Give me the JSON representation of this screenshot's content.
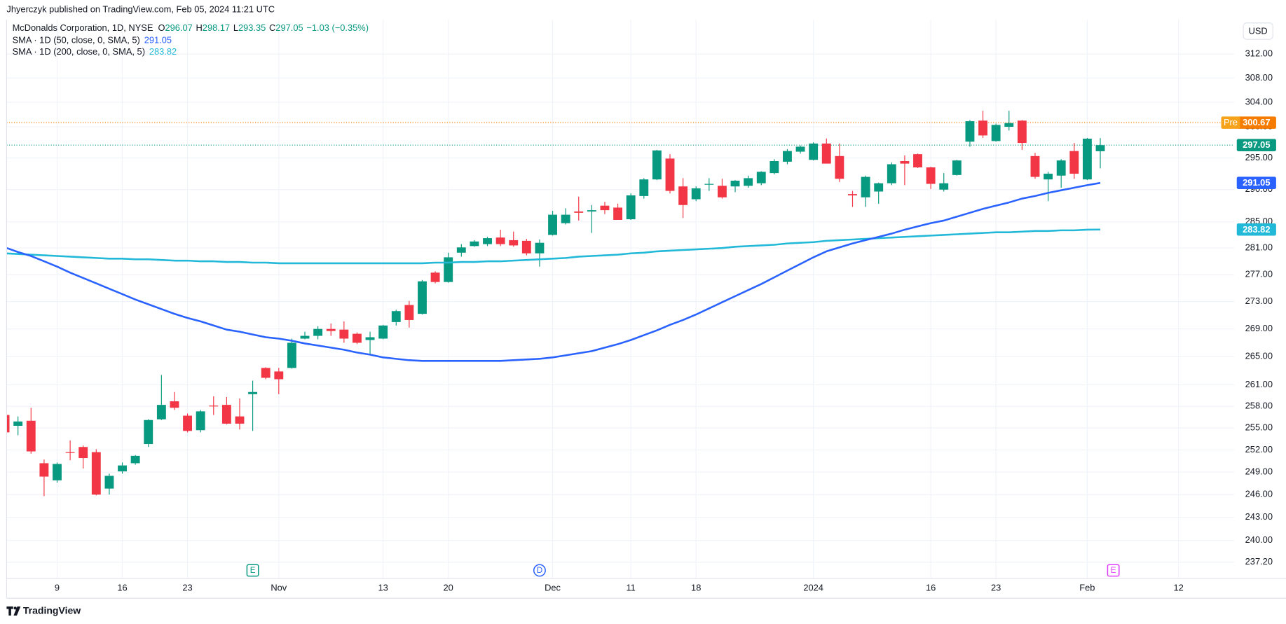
{
  "header": {
    "published": "Jhyerczyk published on TradingView.com, Feb 05, 2024 11:21 UTC"
  },
  "chart_data": {
    "type": "candlestick",
    "title": "McDonalds Corporation, 1D, NYSE",
    "ohlc_letters": [
      "O",
      "H",
      "L",
      "C"
    ],
    "change_label": "−1.03 (−0.35%)",
    "currency": "USD",
    "categories": [
      null,
      null,
      null,
      null,
      "9",
      null,
      null,
      null,
      null,
      "16",
      null,
      null,
      null,
      null,
      "23",
      null,
      null,
      null,
      null,
      null,
      null,
      "Nov",
      null,
      null,
      null,
      null,
      null,
      null,
      null,
      "13",
      null,
      null,
      null,
      null,
      "20",
      null,
      null,
      null,
      null,
      null,
      null,
      null,
      "Dec",
      null,
      null,
      null,
      null,
      null,
      "11",
      null,
      null,
      null,
      null,
      "18",
      null,
      null,
      null,
      null,
      null,
      null,
      null,
      null,
      "2024",
      null,
      null,
      null,
      null,
      null,
      null,
      null,
      null,
      "16",
      null,
      null,
      null,
      null,
      "23",
      null,
      null,
      null,
      null,
      null,
      null,
      "Feb",
      null,
      null,
      null,
      null,
      null,
      null,
      "12"
    ],
    "open": [
      256.8,
      255.3,
      256.0,
      250.2,
      247.9,
      251.7,
      252.4,
      251.7,
      246.8,
      249.1,
      250.2,
      252.8,
      256.2,
      258.7,
      256.7,
      254.7,
      258.1,
      258.2,
      256.6,
      259.7,
      263.4,
      262.9,
      263.4,
      267.6,
      268.0,
      269.0,
      268.9,
      268.3,
      267.4,
      267.6,
      270.0,
      272.5,
      271.2,
      277.3,
      275.9,
      280.3,
      281.3,
      281.6,
      282.6,
      282.2,
      282.1,
      280.2,
      283.0,
      284.8,
      286.6,
      286.6,
      287.5,
      287.2,
      285.4,
      289.0,
      291.6,
      294.9,
      290.5,
      288.5,
      290.8,
      290.6,
      290.5,
      290.6,
      291.0,
      292.6,
      294.4,
      296.0,
      294.7,
      297.3,
      295.3,
      289.3,
      288.8,
      289.7,
      291.0,
      294.5,
      295.6,
      293.5,
      290.0,
      292.3,
      297.6,
      301.0,
      297.7,
      300.0,
      301.0,
      295.3,
      291.6,
      292.2,
      296.1,
      291.6,
      296.07,
      null,
      null,
      null,
      null,
      null,
      null
    ],
    "high": [
      257.5,
      256.6,
      257.8,
      250.7,
      250.3,
      253.3,
      252.6,
      252.1,
      248.8,
      250.3,
      251.3,
      256.2,
      262.4,
      260.0,
      257.0,
      257.5,
      259.4,
      259.3,
      259.1,
      261.6,
      263.5,
      263.4,
      267.6,
      268.6,
      269.4,
      269.8,
      270.1,
      268.5,
      268.6,
      269.6,
      271.8,
      273.1,
      276.2,
      277.5,
      280.3,
      281.6,
      282.2,
      282.7,
      283.8,
      283.5,
      282.4,
      282.3,
      286.7,
      287.1,
      288.9,
      287.6,
      288.1,
      287.8,
      289.4,
      291.8,
      296.3,
      295.6,
      291.8,
      290.5,
      291.8,
      291.7,
      291.5,
      292.2,
      292.9,
      294.8,
      296.4,
      297.0,
      297.5,
      298.1,
      297.3,
      289.8,
      292.2,
      291.1,
      294.3,
      295.4,
      295.7,
      293.6,
      292.6,
      294.7,
      301.1,
      302.6,
      300.5,
      302.6,
      301.1,
      295.8,
      292.8,
      294.8,
      297.4,
      298.2,
      298.17,
      null,
      null,
      null,
      null,
      null,
      null
    ],
    "low": [
      254.3,
      254.0,
      251.5,
      245.8,
      247.6,
      250.6,
      249.5,
      245.9,
      246.0,
      248.8,
      250.0,
      252.4,
      256.1,
      257.5,
      254.4,
      254.4,
      256.8,
      255.5,
      254.8,
      254.6,
      261.8,
      259.7,
      263.3,
      267.5,
      267.5,
      268.0,
      267.0,
      266.8,
      265.3,
      267.5,
      269.5,
      269.2,
      271.1,
      275.7,
      275.8,
      279.7,
      281.2,
      281.3,
      281.3,
      281.2,
      279.9,
      278.2,
      282.9,
      284.6,
      285.2,
      283.3,
      286.2,
      285.3,
      285.3,
      288.6,
      291.5,
      289.4,
      285.6,
      288.2,
      289.8,
      288.6,
      289.6,
      290.3,
      290.7,
      292.4,
      294.0,
      295.7,
      294.6,
      294.1,
      291.2,
      287.3,
      287.3,
      287.8,
      290.7,
      290.7,
      293.4,
      290.1,
      289.7,
      292.2,
      296.8,
      298.2,
      297.6,
      299.4,
      296.3,
      291.7,
      288.2,
      290.3,
      291.7,
      291.5,
      293.35,
      null,
      null,
      null,
      null,
      null,
      null
    ],
    "close": [
      254.4,
      255.9,
      251.8,
      248.4,
      250.1,
      251.6,
      250.9,
      246.0,
      248.5,
      249.9,
      251.2,
      256.1,
      258.2,
      257.8,
      254.6,
      257.3,
      258.0,
      255.6,
      255.6,
      260.0,
      262.0,
      261.8,
      267.0,
      268.0,
      269.0,
      268.7,
      267.6,
      267.0,
      267.8,
      269.5,
      271.6,
      270.3,
      276.0,
      275.9,
      279.6,
      281.1,
      282.0,
      282.5,
      281.6,
      281.4,
      280.2,
      281.8,
      286.1,
      286.1,
      286.4,
      286.8,
      286.8,
      285.3,
      289.1,
      291.6,
      296.2,
      289.8,
      287.6,
      290.2,
      290.9,
      288.8,
      291.4,
      291.8,
      292.8,
      294.5,
      296.1,
      296.8,
      297.3,
      294.1,
      291.7,
      289.1,
      292.0,
      291.0,
      294.0,
      294.1,
      293.5,
      290.9,
      291.0,
      294.6,
      300.9,
      298.6,
      300.3,
      300.6,
      297.4,
      292.0,
      292.5,
      294.6,
      292.5,
      298.08,
      297.05,
      null,
      null,
      null,
      null,
      null,
      null
    ],
    "up_color": "#089981",
    "down_color": "#f23645",
    "series": [
      {
        "name": "SMA · 1D (50, close, 0, SMA, 5)",
        "color": "#2962ff",
        "values": [
          281.1,
          280.4,
          279.8,
          279.0,
          278.2,
          277.3,
          276.5,
          275.7,
          274.9,
          274.1,
          273.3,
          272.6,
          271.9,
          271.2,
          270.6,
          270.1,
          269.5,
          268.9,
          268.6,
          268.2,
          267.8,
          267.6,
          267.3,
          266.9,
          266.6,
          266.3,
          266.0,
          265.6,
          265.3,
          264.9,
          264.7,
          264.5,
          264.4,
          264.4,
          264.4,
          264.4,
          264.4,
          264.4,
          264.4,
          264.5,
          264.6,
          264.7,
          264.9,
          265.2,
          265.5,
          265.8,
          266.3,
          266.8,
          267.4,
          268.1,
          268.8,
          269.6,
          270.3,
          271.1,
          272.0,
          272.9,
          273.8,
          274.7,
          275.6,
          276.6,
          277.6,
          278.6,
          279.6,
          280.5,
          281.1,
          281.7,
          282.2,
          282.7,
          283.2,
          283.8,
          284.3,
          284.8,
          285.2,
          285.8,
          286.4,
          287.0,
          287.5,
          288.0,
          288.6,
          289.0,
          289.5,
          289.9,
          290.3,
          290.7,
          291.05,
          null,
          null,
          null,
          null,
          null,
          null
        ]
      },
      {
        "name": "SMA · 1D (200, close, 0, SMA, 5)",
        "color": "#22b8d8",
        "values": [
          280.2,
          280.1,
          280.0,
          279.9,
          279.8,
          279.7,
          279.6,
          279.5,
          279.4,
          279.4,
          279.3,
          279.3,
          279.2,
          279.1,
          279.1,
          279.0,
          279.0,
          278.9,
          278.9,
          278.8,
          278.8,
          278.7,
          278.7,
          278.7,
          278.7,
          278.7,
          278.7,
          278.7,
          278.7,
          278.7,
          278.7,
          278.7,
          278.7,
          278.8,
          278.8,
          278.9,
          278.9,
          279.0,
          279.0,
          279.1,
          279.2,
          279.3,
          279.4,
          279.5,
          279.7,
          279.8,
          279.9,
          280.0,
          280.2,
          280.3,
          280.5,
          280.6,
          280.7,
          280.8,
          280.9,
          281.0,
          281.2,
          281.3,
          281.4,
          281.5,
          281.7,
          281.8,
          281.9,
          282.1,
          282.2,
          282.3,
          282.4,
          282.5,
          282.6,
          282.7,
          282.8,
          282.9,
          283.0,
          283.1,
          283.2,
          283.3,
          283.4,
          283.4,
          283.5,
          283.6,
          283.6,
          283.7,
          283.7,
          283.8,
          283.82,
          null,
          null,
          null,
          null,
          null,
          null
        ]
      }
    ],
    "premarket": {
      "label": "Pre",
      "value": 300.67,
      "color": "#f57c00"
    },
    "events": [
      {
        "label": "E",
        "at": 19,
        "color": "#089981",
        "shape": "square"
      },
      {
        "label": "D",
        "at": 41,
        "color": "#2962ff",
        "shape": "circle"
      },
      {
        "label": "E",
        "at": 85,
        "color": "#e040fb",
        "shape": "square"
      }
    ],
    "ylim": [
      235.1,
      317.85
    ],
    "log_scale": true,
    "yticks": [
      {
        "value": 312,
        "label": "312.00"
      },
      {
        "value": 308,
        "label": "308.00"
      },
      {
        "value": 304,
        "label": "304.00"
      },
      {
        "value": 300,
        "label": "300.00"
      },
      {
        "value": 295,
        "label": "295.00"
      },
      {
        "value": 290,
        "label": "290.00"
      },
      {
        "value": 285,
        "label": "285.00"
      },
      {
        "value": 281,
        "label": "281.00"
      },
      {
        "value": 277,
        "label": "277.00"
      },
      {
        "value": 273,
        "label": "273.00"
      },
      {
        "value": 269,
        "label": "269.00"
      },
      {
        "value": 265,
        "label": "265.00"
      },
      {
        "value": 261,
        "label": "261.00"
      },
      {
        "value": 258,
        "label": "258.00"
      },
      {
        "value": 255,
        "label": "255.00"
      },
      {
        "value": 252,
        "label": "252.00"
      },
      {
        "value": 249,
        "label": "249.00"
      },
      {
        "value": 246,
        "label": "246.00"
      },
      {
        "value": 243,
        "label": "243.00"
      },
      {
        "value": 240,
        "label": "240.00"
      },
      {
        "value": 237.2,
        "label": "237.20"
      }
    ],
    "grid": true
  },
  "footer": {
    "brand": "TradingView"
  }
}
